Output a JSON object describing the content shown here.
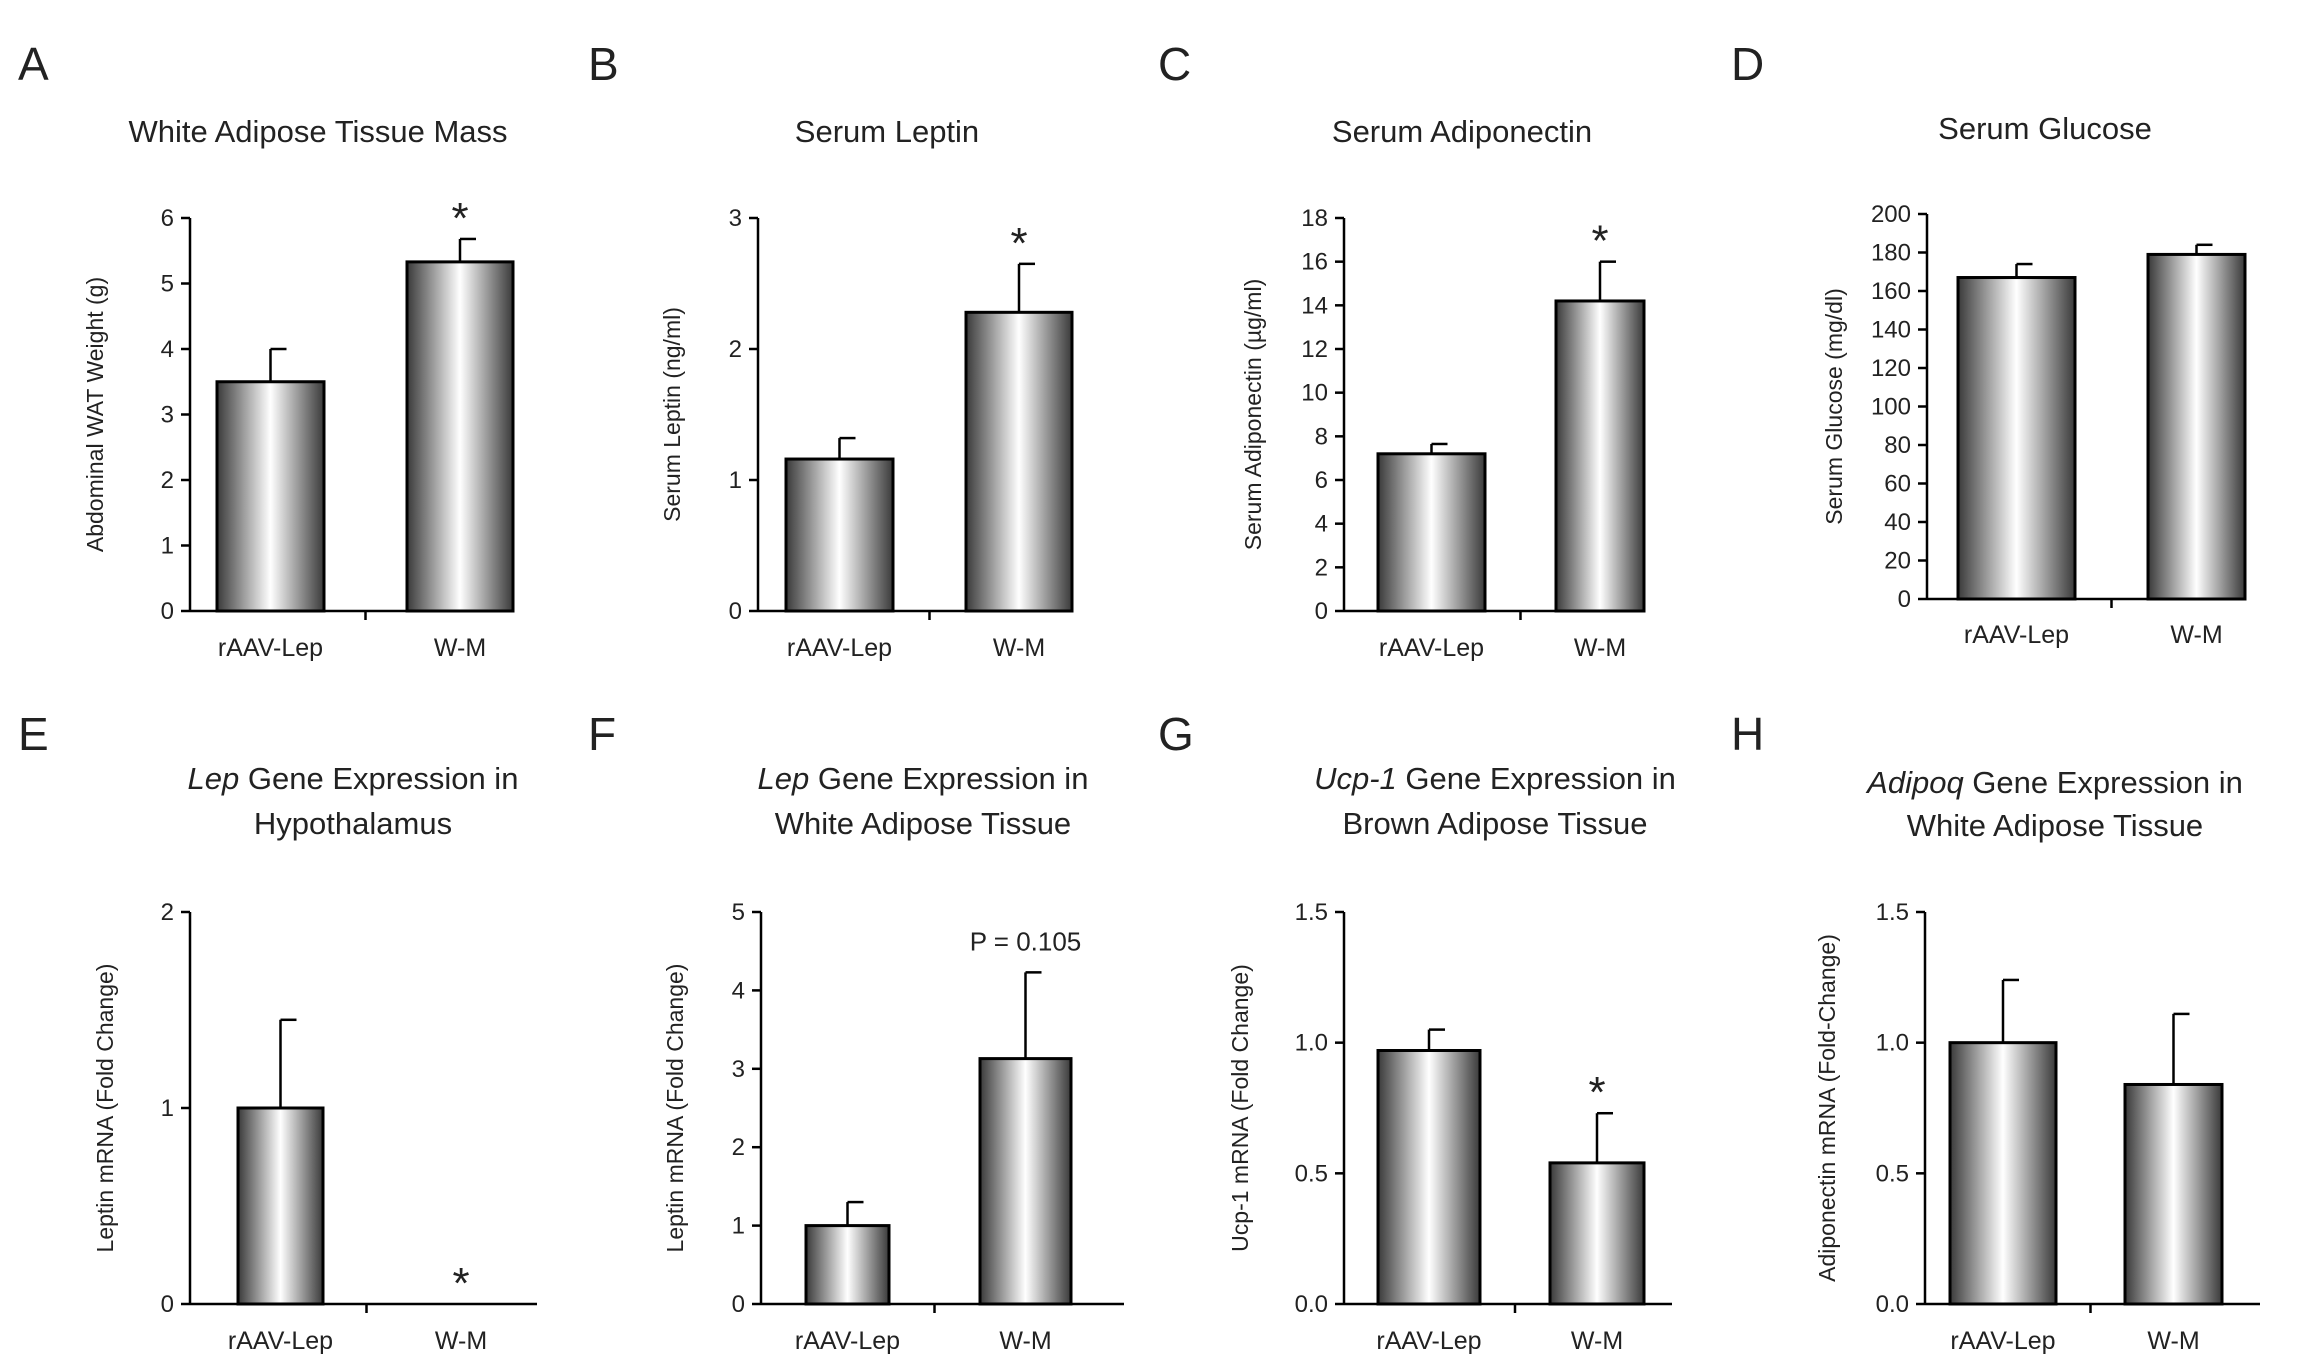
{
  "figure": {
    "colors": {
      "axis": "#000000",
      "bar_edge": "#000000",
      "bar_dark": "#3a3a3a",
      "bar_light": "#ffffff",
      "text": "#222222"
    }
  },
  "chart_data": [
    {
      "type": "bar",
      "letter": "A",
      "title": [
        "White Adipose Tissue Mass"
      ],
      "ylabel": "Abdominal WAT Weight (g)",
      "categories": [
        "rAAV-Lep",
        "W-M"
      ],
      "values": [
        3.5,
        5.33
      ],
      "errors": [
        0.5,
        0.35
      ],
      "ylim": [
        0,
        6
      ],
      "yticks": [
        0,
        1,
        2,
        3,
        4,
        5,
        6
      ],
      "ytick_labels": [
        "0",
        "1",
        "2",
        "3",
        "4",
        "5",
        "6"
      ],
      "annotations": [
        {
          "category": "W-M",
          "text": "*"
        }
      ]
    },
    {
      "type": "bar",
      "letter": "B",
      "title": [
        "Serum Leptin"
      ],
      "ylabel": "Serum Leptin (ng/ml)",
      "categories": [
        "rAAV-Lep",
        "W-M"
      ],
      "values": [
        1.16,
        2.28
      ],
      "errors": [
        0.16,
        0.37
      ],
      "ylim": [
        0,
        3
      ],
      "yticks": [
        0,
        1,
        2,
        3
      ],
      "ytick_labels": [
        "0",
        "1",
        "2",
        "3"
      ],
      "annotations": [
        {
          "category": "W-M",
          "text": "*"
        }
      ]
    },
    {
      "type": "bar",
      "letter": "C",
      "title": [
        "Serum Adiponectin"
      ],
      "ylabel": "Serum Adiponectin (µg/ml)",
      "categories": [
        "rAAV-Lep",
        "W-M"
      ],
      "values": [
        7.2,
        14.2
      ],
      "errors": [
        0.45,
        1.8
      ],
      "ylim": [
        0,
        18
      ],
      "yticks": [
        0,
        2,
        4,
        6,
        8,
        10,
        12,
        14,
        16,
        18
      ],
      "ytick_labels": [
        "0",
        "2",
        "4",
        "6",
        "8",
        "10",
        "12",
        "14",
        "16",
        "18"
      ],
      "annotations": [
        {
          "category": "W-M",
          "text": "*"
        }
      ]
    },
    {
      "type": "bar",
      "letter": "D",
      "title": [
        "Serum Glucose"
      ],
      "ylabel": "Serum Glucose (mg/dl)",
      "categories": [
        "rAAV-Lep",
        "W-M"
      ],
      "values": [
        167,
        179
      ],
      "errors": [
        7,
        5
      ],
      "ylim": [
        0,
        200
      ],
      "yticks": [
        0,
        20,
        40,
        60,
        80,
        100,
        120,
        140,
        160,
        180,
        200
      ],
      "ytick_labels": [
        "0",
        "20",
        "40",
        "60",
        "80",
        "100",
        "120",
        "140",
        "160",
        "180",
        "200"
      ],
      "annotations": []
    },
    {
      "type": "bar",
      "letter": "E",
      "title": [
        "Lep",
        " Gene Expression in",
        "Hypothalamus"
      ],
      "ylabel": "Leptin mRNA (Fold Change)",
      "categories": [
        "rAAV-Lep",
        "W-M"
      ],
      "values": [
        1.0,
        0.0
      ],
      "errors": [
        0.45,
        0.0
      ],
      "ylim": [
        0,
        2
      ],
      "yticks": [
        0,
        1,
        2
      ],
      "ytick_labels": [
        "0",
        "1",
        "2"
      ],
      "annotations": [
        {
          "category": "W-M",
          "text": "*"
        }
      ]
    },
    {
      "type": "bar",
      "letter": "F",
      "title": [
        "Lep",
        " Gene Expression in",
        "White Adipose Tissue"
      ],
      "ylabel": "Leptin mRNA (Fold Change)",
      "categories": [
        "rAAV-Lep",
        "W-M"
      ],
      "values": [
        1.0,
        3.13
      ],
      "errors": [
        0.3,
        1.1
      ],
      "ylim": [
        0,
        5
      ],
      "yticks": [
        0,
        1,
        2,
        3,
        4,
        5
      ],
      "ytick_labels": [
        "0",
        "1",
        "2",
        "3",
        "4",
        "5"
      ],
      "annotations": [
        {
          "category": "W-M",
          "text": "P = 0.105"
        }
      ]
    },
    {
      "type": "bar",
      "letter": "G",
      "title": [
        "Ucp-1",
        " Gene Expression in",
        "Brown Adipose Tissue"
      ],
      "ylabel": "Ucp-1 mRNA (Fold Change)",
      "categories": [
        "rAAV-Lep",
        "W-M"
      ],
      "values": [
        0.97,
        0.54
      ],
      "errors": [
        0.08,
        0.19
      ],
      "ylim": [
        0,
        1.5
      ],
      "yticks": [
        0,
        0.5,
        1.0,
        1.5
      ],
      "ytick_labels": [
        "0.0",
        "0.5",
        "1.0",
        "1.5"
      ],
      "annotations": [
        {
          "category": "W-M",
          "text": "*"
        }
      ]
    },
    {
      "type": "bar",
      "letter": "H",
      "title": [
        "Adipoq",
        " Gene Expression in",
        "White Adipose Tissue"
      ],
      "ylabel": "Adiponectin mRNA (Fold-Change)",
      "categories": [
        "rAAV-Lep",
        "W-M"
      ],
      "values": [
        1.0,
        0.84
      ],
      "errors": [
        0.24,
        0.27
      ],
      "ylim": [
        0,
        1.5
      ],
      "yticks": [
        0,
        0.5,
        1.0,
        1.5
      ],
      "ytick_labels": [
        "0.0",
        "0.5",
        "1.0",
        "1.5"
      ],
      "annotations": []
    }
  ]
}
